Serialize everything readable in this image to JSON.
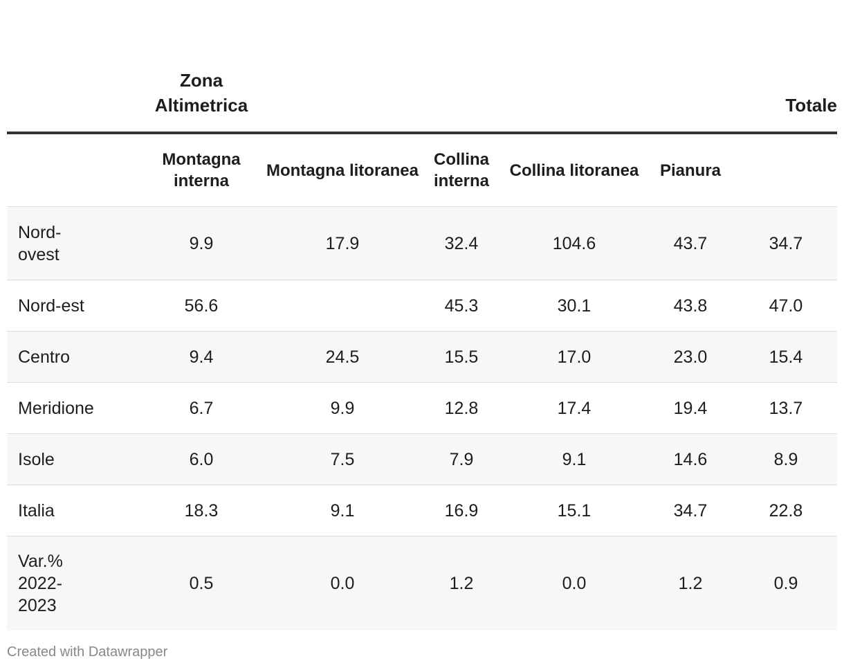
{
  "chart_data": {
    "type": "table",
    "top_headers": {
      "zona": "Zona Altimetrica",
      "totale": "Totale"
    },
    "columns": [
      "",
      "Montagna interna",
      "Montagna litoranea",
      "Collina interna",
      "Collina litoranea",
      "Pianura",
      ""
    ],
    "rows": [
      {
        "label": "Nord-ovest",
        "values": [
          "9.9",
          "17.9",
          "32.4",
          "104.6",
          "43.7",
          "34.7"
        ]
      },
      {
        "label": "Nord-est",
        "values": [
          "56.6",
          "",
          "45.3",
          "30.1",
          "43.8",
          "47.0"
        ]
      },
      {
        "label": "Centro",
        "values": [
          "9.4",
          "24.5",
          "15.5",
          "17.0",
          "23.0",
          "15.4"
        ]
      },
      {
        "label": "Meridione",
        "values": [
          "6.7",
          "9.9",
          "12.8",
          "17.4",
          "19.4",
          "13.7"
        ]
      },
      {
        "label": "Isole",
        "values": [
          "6.0",
          "7.5",
          "7.9",
          "9.1",
          "14.6",
          "8.9"
        ]
      },
      {
        "label": "Italia",
        "values": [
          "18.3",
          "9.1",
          "16.9",
          "15.1",
          "34.7",
          "22.8"
        ]
      },
      {
        "label": "Var.% 2022-2023",
        "values": [
          "0.5",
          "0.0",
          "1.2",
          "0.0",
          "1.2",
          "0.9"
        ]
      }
    ]
  },
  "footer": "Created with Datawrapper"
}
